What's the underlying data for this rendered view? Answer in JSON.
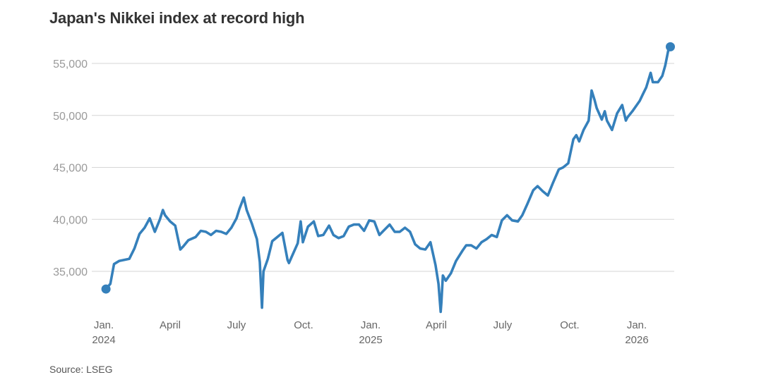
{
  "title": "Japan's Nikkei index at record high",
  "source": "Source: LSEG",
  "chart_data": {
    "type": "line",
    "title": "Japan's Nikkei index at record high",
    "xlabel": "",
    "ylabel": "",
    "ylim": [
      30700,
      57500
    ],
    "grid": true,
    "line_color": "#3580bb",
    "yticks": [
      {
        "value": 35000,
        "label": "35,000"
      },
      {
        "value": 40000,
        "label": "40,000"
      },
      {
        "value": 45000,
        "label": "45,000"
      },
      {
        "value": 50000,
        "label": "50,000"
      },
      {
        "value": 55000,
        "label": "55,000"
      }
    ],
    "xticks": [
      {
        "date": "2024-01-01",
        "label": "Jan.",
        "year": "2024"
      },
      {
        "date": "2024-04-01",
        "label": "April",
        "year": ""
      },
      {
        "date": "2024-07-01",
        "label": "July",
        "year": ""
      },
      {
        "date": "2024-10-01",
        "label": "Oct.",
        "year": ""
      },
      {
        "date": "2025-01-01",
        "label": "Jan.",
        "year": "2025"
      },
      {
        "date": "2025-04-01",
        "label": "April",
        "year": ""
      },
      {
        "date": "2025-07-01",
        "label": "July",
        "year": ""
      },
      {
        "date": "2025-10-01",
        "label": "Oct.",
        "year": ""
      },
      {
        "date": "2026-01-01",
        "label": "Jan.",
        "year": "2026"
      }
    ],
    "series": [
      {
        "x": [
          "2024-01-04",
          "2024-01-10",
          "2024-01-15",
          "2024-01-22",
          "2024-01-29",
          "2024-02-05",
          "2024-02-12",
          "2024-02-19",
          "2024-02-26",
          "2024-03-04",
          "2024-03-11",
          "2024-03-18",
          "2024-03-22",
          "2024-03-25",
          "2024-04-01",
          "2024-04-08",
          "2024-04-15",
          "2024-04-19",
          "2024-04-26",
          "2024-05-06",
          "2024-05-13",
          "2024-05-20",
          "2024-05-27",
          "2024-06-03",
          "2024-06-10",
          "2024-06-17",
          "2024-06-24",
          "2024-07-01",
          "2024-07-05",
          "2024-07-11",
          "2024-07-15",
          "2024-07-22",
          "2024-07-29",
          "2024-08-02",
          "2024-08-05",
          "2024-08-07",
          "2024-08-13",
          "2024-08-19",
          "2024-08-26",
          "2024-09-02",
          "2024-09-09",
          "2024-09-11",
          "2024-09-16",
          "2024-09-23",
          "2024-09-27",
          "2024-09-30",
          "2024-10-07",
          "2024-10-15",
          "2024-10-21",
          "2024-10-28",
          "2024-11-05",
          "2024-11-11",
          "2024-11-18",
          "2024-11-25",
          "2024-12-02",
          "2024-12-09",
          "2024-12-16",
          "2024-12-23",
          "2024-12-30",
          "2025-01-06",
          "2025-01-13",
          "2025-01-20",
          "2025-01-27",
          "2025-02-03",
          "2025-02-10",
          "2025-02-17",
          "2025-02-24",
          "2025-03-03",
          "2025-03-10",
          "2025-03-17",
          "2025-03-24",
          "2025-03-31",
          "2025-04-04",
          "2025-04-07",
          "2025-04-08",
          "2025-04-10",
          "2025-04-14",
          "2025-04-21",
          "2025-04-28",
          "2025-05-07",
          "2025-05-12",
          "2025-05-19",
          "2025-05-26",
          "2025-06-02",
          "2025-06-09",
          "2025-06-16",
          "2025-06-23",
          "2025-06-30",
          "2025-07-07",
          "2025-07-14",
          "2025-07-22",
          "2025-07-28",
          "2025-08-04",
          "2025-08-12",
          "2025-08-18",
          "2025-08-25",
          "2025-09-01",
          "2025-09-08",
          "2025-09-16",
          "2025-09-22",
          "2025-09-29",
          "2025-10-06",
          "2025-10-10",
          "2025-10-14",
          "2025-10-20",
          "2025-10-27",
          "2025-10-31",
          "2025-11-04",
          "2025-11-07",
          "2025-11-14",
          "2025-11-18",
          "2025-11-21",
          "2025-11-28",
          "2025-12-05",
          "2025-12-12",
          "2025-12-17",
          "2025-12-19",
          "2025-12-26",
          "2026-01-05",
          "2026-01-09",
          "2026-01-14",
          "2026-01-20",
          "2026-01-23",
          "2026-01-30",
          "2026-02-05",
          "2026-02-09",
          "2026-02-13",
          "2026-02-16"
        ],
        "y": [
          33300,
          33800,
          35700,
          36000,
          36100,
          36200,
          37200,
          38600,
          39200,
          40100,
          38800,
          40000,
          40900,
          40400,
          39800,
          39400,
          37100,
          37400,
          38000,
          38300,
          38900,
          38800,
          38500,
          38900,
          38800,
          38600,
          39200,
          40100,
          41000,
          42100,
          40900,
          39600,
          38100,
          35900,
          31500,
          35000,
          36200,
          37900,
          38300,
          38700,
          36100,
          35800,
          36600,
          37700,
          39800,
          37800,
          39300,
          39800,
          38400,
          38500,
          39400,
          38500,
          38200,
          38400,
          39300,
          39500,
          39500,
          38900,
          39900,
          39800,
          38500,
          39000,
          39500,
          38800,
          38800,
          39200,
          38800,
          37600,
          37200,
          37100,
          37800,
          35600,
          33800,
          31100,
          32000,
          34600,
          34100,
          34800,
          36000,
          37000,
          37500,
          37500,
          37200,
          37800,
          38100,
          38500,
          38300,
          39900,
          40400,
          39900,
          39800,
          40400,
          41500,
          42800,
          43200,
          42700,
          42300,
          43500,
          44800,
          45000,
          45400,
          47700,
          48100,
          47500,
          48600,
          49500,
          52400,
          51500,
          50700,
          49600,
          50400,
          49500,
          48600,
          50200,
          51000,
          49500,
          49800,
          50400,
          51400,
          52000,
          52700,
          54100,
          53200,
          53200,
          53800,
          54800,
          56200,
          56600
        ]
      }
    ],
    "first_point": {
      "x": "2024-01-04",
      "y": 33300
    },
    "last_point": {
      "x": "2026-02-16",
      "y": 56600
    }
  }
}
